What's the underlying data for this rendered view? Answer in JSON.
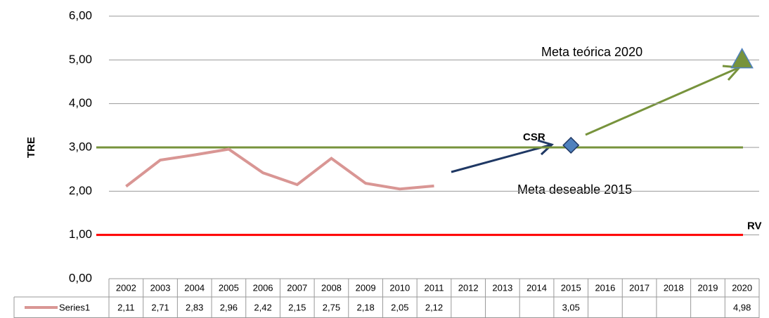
{
  "chart_data": {
    "type": "line",
    "y_label": "TRE",
    "categories": [
      "2002",
      "2003",
      "2004",
      "2005",
      "2006",
      "2007",
      "2008",
      "2009",
      "2010",
      "2011",
      "2012",
      "2013",
      "2014",
      "2015",
      "2016",
      "2017",
      "2018",
      "2019",
      "2020"
    ],
    "series": [
      {
        "name": "Series1",
        "color": "#d99694",
        "values": [
          2.11,
          2.71,
          2.83,
          2.96,
          2.42,
          2.15,
          2.75,
          2.18,
          2.05,
          2.12,
          null,
          null,
          null,
          3.05,
          null,
          null,
          null,
          null,
          4.98
        ],
        "value_labels": [
          "2,11",
          "2,71",
          "2,83",
          "2,96",
          "2,42",
          "2,15",
          "2,75",
          "2,18",
          "2,05",
          "2,12",
          null,
          null,
          null,
          "3,05",
          null,
          null,
          null,
          null,
          "4,98"
        ]
      }
    ],
    "ylim": [
      0,
      6
    ],
    "yticks": [
      {
        "value": 0,
        "label": "0,00"
      },
      {
        "value": 1,
        "label": "1,00"
      },
      {
        "value": 2,
        "label": "2,00"
      },
      {
        "value": 3,
        "label": "3,00"
      },
      {
        "value": 4,
        "label": "4,00"
      },
      {
        "value": 5,
        "label": "5,00"
      },
      {
        "value": 6,
        "label": "6,00"
      }
    ],
    "grid": true,
    "reference_lines": [
      {
        "value": 3,
        "color": "#77933c"
      },
      {
        "value": 1,
        "color": "#ff0000",
        "label": "RV"
      }
    ],
    "annotations": [
      "Meta  teórica 2020",
      "CSR",
      "Meta deseable 2015"
    ]
  }
}
